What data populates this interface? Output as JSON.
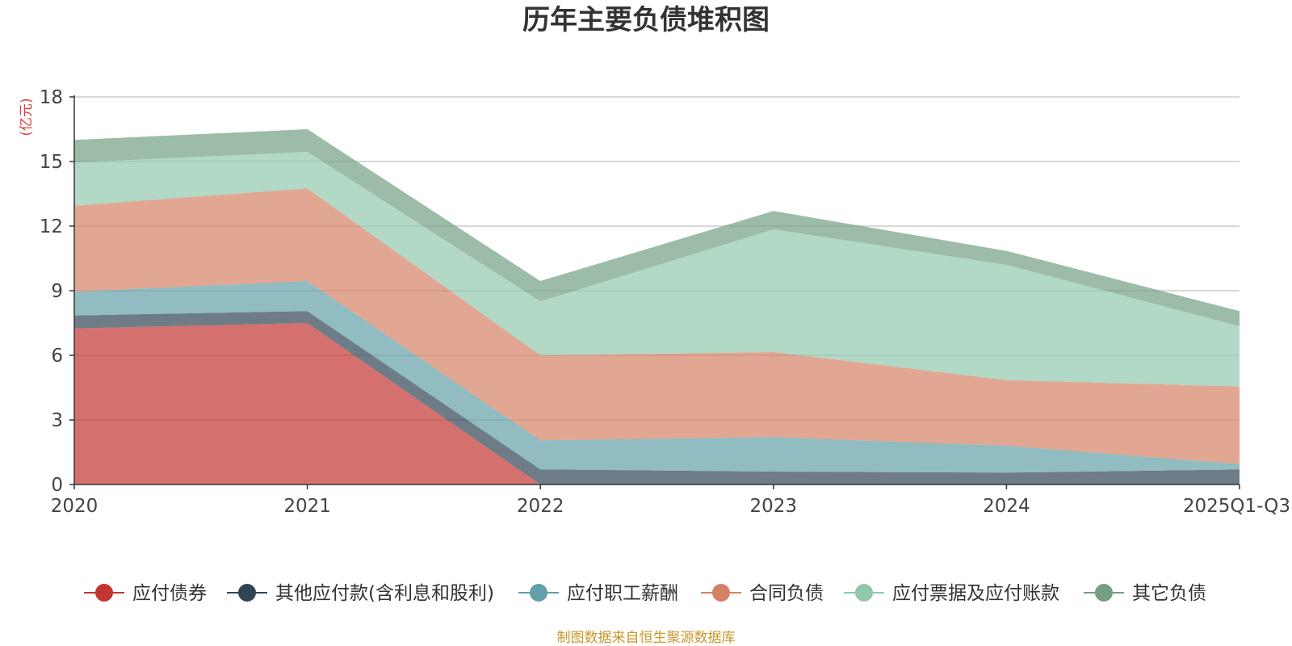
{
  "chart_data": {
    "type": "area",
    "stacked": true,
    "title": "历年主要负债堆积图",
    "unit": "(亿元)",
    "categories": [
      "2020",
      "2021",
      "2022",
      "2023",
      "2024",
      "2025Q1-Q3"
    ],
    "ylim": [
      0,
      18
    ],
    "yticks": [
      "0",
      "3",
      "6",
      "9",
      "12",
      "15",
      "18"
    ],
    "grid": true,
    "legend_position": "bottom",
    "series": [
      {
        "name": "应付债券",
        "color": "#c23531",
        "values": [
          7.25,
          7.5,
          0,
          0,
          0,
          0
        ]
      },
      {
        "name": "其他应付款(含利息和股利)",
        "color": "#2f4554",
        "values": [
          0.6,
          0.55,
          0.7,
          0.6,
          0.55,
          0.7
        ]
      },
      {
        "name": "应付职工薪酬",
        "color": "#61a0a8",
        "values": [
          1.1,
          1.4,
          1.35,
          1.6,
          1.25,
          0.25
        ]
      },
      {
        "name": "合同负债",
        "color": "#d48265",
        "values": [
          4.0,
          4.3,
          3.95,
          3.95,
          3.05,
          3.6
        ]
      },
      {
        "name": "应付票据及应付账款",
        "color": "#91c7ae",
        "values": [
          2.0,
          1.7,
          2.5,
          5.7,
          5.35,
          2.8
        ]
      },
      {
        "name": "其它负债",
        "color": "#749f83",
        "values": [
          1.05,
          1.05,
          0.95,
          0.85,
          0.65,
          0.7
        ]
      }
    ]
  },
  "footer": {
    "source": "制图数据来自恒生聚源数据库"
  }
}
